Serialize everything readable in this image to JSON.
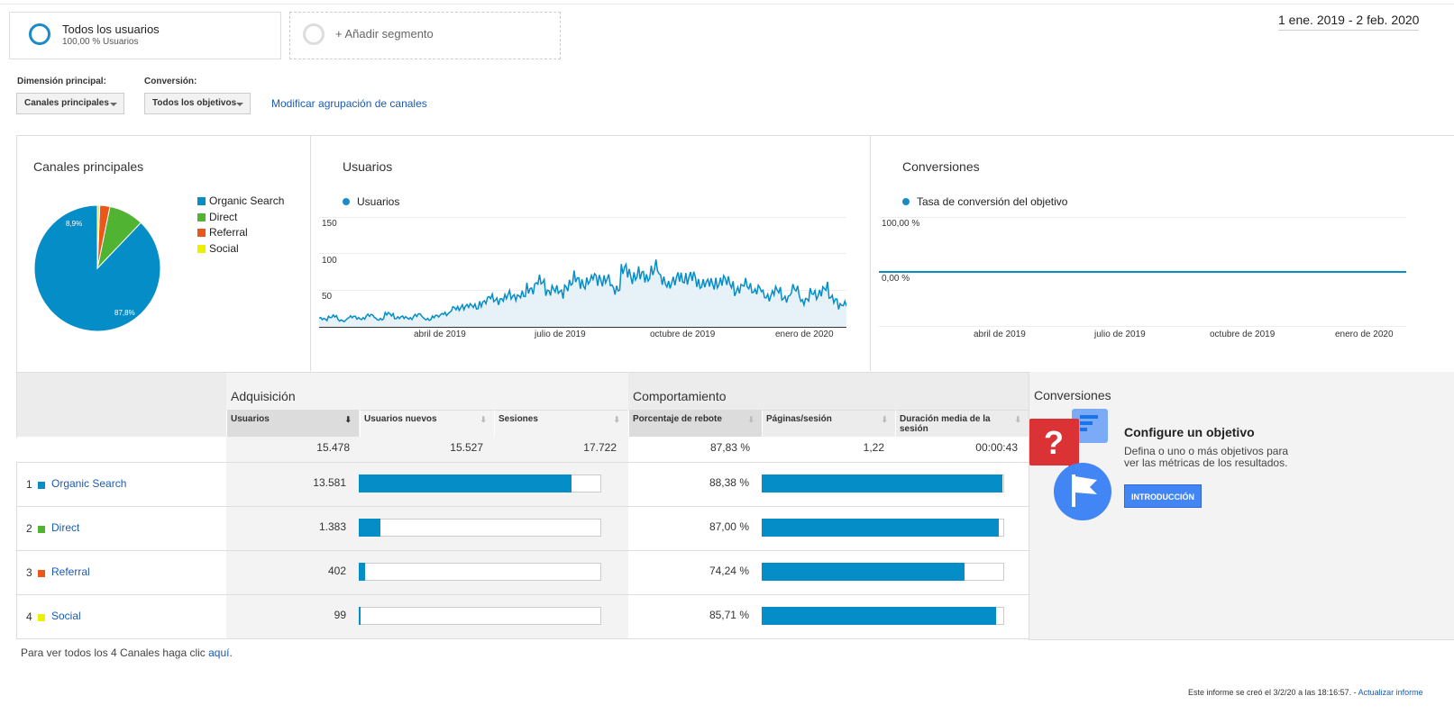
{
  "segments": {
    "active": {
      "title": "Todos los usuarios",
      "subtitle": "100,00 % Usuarios"
    },
    "add_label": "+ Añadir segmento"
  },
  "date_range": "1 ene. 2019 - 2 feb. 2020",
  "controls": {
    "dimension_label": "Dimensión principal:",
    "dimension_value": "Canales principales",
    "conversion_label": "Conversión:",
    "conversion_value": "Todos los objetivos",
    "modify_link": "Modificar agrupación de canales"
  },
  "colors": {
    "organic": "#058dc7",
    "direct": "#50b432",
    "referral": "#ed561b",
    "social": "#edef00",
    "accent": "#1a8ac9"
  },
  "pie": {
    "title": "Canales principales",
    "legend": [
      "Organic Search",
      "Direct",
      "Referral",
      "Social"
    ],
    "labels": {
      "organic": "87,8%",
      "direct": "8,9%"
    }
  },
  "users_chart": {
    "title": "Usuarios",
    "legend": "Usuarios",
    "yticks": [
      "150",
      "100",
      "50"
    ],
    "xticks": [
      "abril de 2019",
      "julio de 2019",
      "octubre de 2019",
      "enero de 2020"
    ]
  },
  "conv_chart": {
    "title": "Conversiones",
    "legend": "Tasa de conversión del objetivo",
    "yticks": [
      "100,00 %",
      "0,00 %"
    ],
    "xticks": [
      "abril de 2019",
      "julio de 2019",
      "octubre de 2019",
      "enero de 2020"
    ]
  },
  "chart_data": [
    {
      "type": "pie",
      "title": "Canales principales",
      "slices": [
        {
          "name": "Organic Search",
          "value": 87.8
        },
        {
          "name": "Direct",
          "value": 8.9
        },
        {
          "name": "Referral",
          "value": 2.6
        },
        {
          "name": "Social",
          "value": 0.6
        }
      ]
    },
    {
      "type": "area",
      "title": "Usuarios",
      "series": [
        {
          "name": "Usuarios",
          "values": [
            12,
            15,
            10,
            14,
            13,
            16,
            12,
            18,
            14,
            13,
            17,
            12,
            15,
            20,
            25,
            30,
            28,
            35,
            40,
            38,
            45,
            42,
            55,
            60,
            52,
            48,
            58,
            65,
            60,
            70,
            62,
            55,
            75,
            72,
            68,
            80,
            65,
            60,
            70,
            66,
            62,
            58,
            64,
            60,
            52,
            58,
            50,
            44,
            48,
            42,
            50,
            38,
            45,
            52,
            40,
            30
          ]
        }
      ],
      "ylim": [
        0,
        150
      ],
      "xticks": [
        "abril de 2019",
        "julio de 2019",
        "octubre de 2019",
        "enero de 2020"
      ]
    },
    {
      "type": "line",
      "title": "Conversiones",
      "series": [
        {
          "name": "Tasa de conversión del objetivo",
          "values": [
            0,
            0
          ]
        }
      ],
      "ylim": [
        0,
        100
      ]
    }
  ],
  "table": {
    "groups": {
      "acq": "Adquisición",
      "beh": "Comportamiento",
      "conv": "Conversiones"
    },
    "headers": [
      "Usuarios",
      "Usuarios nuevos",
      "Sesiones",
      "Porcentaje de rebote",
      "Páginas/sesión",
      "Duración media de la sesión"
    ],
    "totals": [
      "15.478",
      "15.527",
      "17.722",
      "87,83 %",
      "1,22",
      "00:00:43"
    ],
    "rows": [
      {
        "num": "1",
        "name": "Organic Search",
        "users": "13.581",
        "users_frac": 0.877,
        "bounce": "88,38 %",
        "bounce_frac": 0.994
      },
      {
        "num": "2",
        "name": "Direct",
        "users": "1.383",
        "users_frac": 0.089,
        "bounce": "87,00 %",
        "bounce_frac": 0.979
      },
      {
        "num": "3",
        "name": "Referral",
        "users": "402",
        "users_frac": 0.026,
        "bounce": "74,24 %",
        "bounce_frac": 0.836
      },
      {
        "num": "4",
        "name": "Social",
        "users": "99",
        "users_frac": 0.006,
        "bounce": "85,71 %",
        "bounce_frac": 0.965
      }
    ]
  },
  "promo": {
    "title": "Configure un objetivo",
    "desc": "Defina o uno o más objetivos para ver las métricas de los resultados.",
    "button": "INTRODUCCIÓN"
  },
  "footer": {
    "prefix": "Para ver todos los 4 Canales haga clic ",
    "link": "aquí",
    "suffix": ".",
    "created": "Este informe se creó el 3/2/20 a las 18:16:57. - ",
    "refresh": "Actualizar informe"
  }
}
